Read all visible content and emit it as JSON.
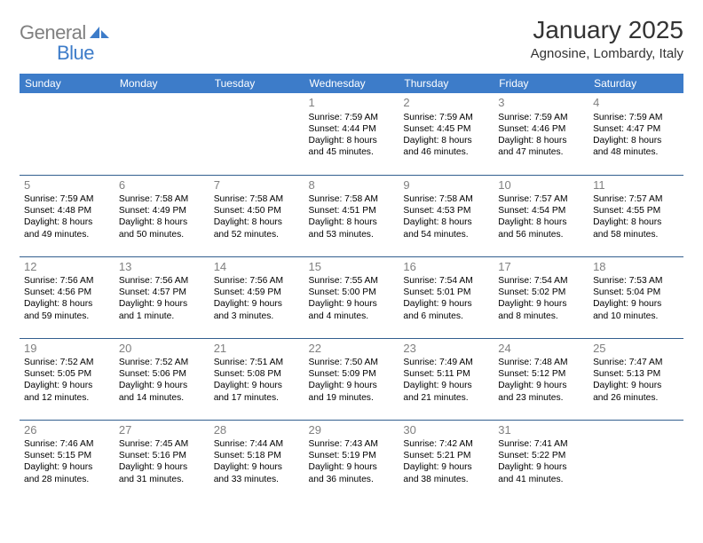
{
  "logo": {
    "prefix": "General",
    "suffix": "Blue",
    "icon_color": "#3d7cc9"
  },
  "header": {
    "title": "January 2025",
    "location": "Agnosine, Lombardy, Italy"
  },
  "colors": {
    "header_bg": "#3d7cc9",
    "header_text": "#ffffff",
    "cell_border": "#335f8f",
    "daynum": "#808080",
    "body_text": "#000000"
  },
  "weekdays": [
    "Sunday",
    "Monday",
    "Tuesday",
    "Wednesday",
    "Thursday",
    "Friday",
    "Saturday"
  ],
  "weeks": [
    [
      null,
      null,
      null,
      {
        "d": "1",
        "sr": "Sunrise: 7:59 AM",
        "ss": "Sunset: 4:44 PM",
        "dl1": "Daylight: 8 hours",
        "dl2": "and 45 minutes."
      },
      {
        "d": "2",
        "sr": "Sunrise: 7:59 AM",
        "ss": "Sunset: 4:45 PM",
        "dl1": "Daylight: 8 hours",
        "dl2": "and 46 minutes."
      },
      {
        "d": "3",
        "sr": "Sunrise: 7:59 AM",
        "ss": "Sunset: 4:46 PM",
        "dl1": "Daylight: 8 hours",
        "dl2": "and 47 minutes."
      },
      {
        "d": "4",
        "sr": "Sunrise: 7:59 AM",
        "ss": "Sunset: 4:47 PM",
        "dl1": "Daylight: 8 hours",
        "dl2": "and 48 minutes."
      }
    ],
    [
      {
        "d": "5",
        "sr": "Sunrise: 7:59 AM",
        "ss": "Sunset: 4:48 PM",
        "dl1": "Daylight: 8 hours",
        "dl2": "and 49 minutes."
      },
      {
        "d": "6",
        "sr": "Sunrise: 7:58 AM",
        "ss": "Sunset: 4:49 PM",
        "dl1": "Daylight: 8 hours",
        "dl2": "and 50 minutes."
      },
      {
        "d": "7",
        "sr": "Sunrise: 7:58 AM",
        "ss": "Sunset: 4:50 PM",
        "dl1": "Daylight: 8 hours",
        "dl2": "and 52 minutes."
      },
      {
        "d": "8",
        "sr": "Sunrise: 7:58 AM",
        "ss": "Sunset: 4:51 PM",
        "dl1": "Daylight: 8 hours",
        "dl2": "and 53 minutes."
      },
      {
        "d": "9",
        "sr": "Sunrise: 7:58 AM",
        "ss": "Sunset: 4:53 PM",
        "dl1": "Daylight: 8 hours",
        "dl2": "and 54 minutes."
      },
      {
        "d": "10",
        "sr": "Sunrise: 7:57 AM",
        "ss": "Sunset: 4:54 PM",
        "dl1": "Daylight: 8 hours",
        "dl2": "and 56 minutes."
      },
      {
        "d": "11",
        "sr": "Sunrise: 7:57 AM",
        "ss": "Sunset: 4:55 PM",
        "dl1": "Daylight: 8 hours",
        "dl2": "and 58 minutes."
      }
    ],
    [
      {
        "d": "12",
        "sr": "Sunrise: 7:56 AM",
        "ss": "Sunset: 4:56 PM",
        "dl1": "Daylight: 8 hours",
        "dl2": "and 59 minutes."
      },
      {
        "d": "13",
        "sr": "Sunrise: 7:56 AM",
        "ss": "Sunset: 4:57 PM",
        "dl1": "Daylight: 9 hours",
        "dl2": "and 1 minute."
      },
      {
        "d": "14",
        "sr": "Sunrise: 7:56 AM",
        "ss": "Sunset: 4:59 PM",
        "dl1": "Daylight: 9 hours",
        "dl2": "and 3 minutes."
      },
      {
        "d": "15",
        "sr": "Sunrise: 7:55 AM",
        "ss": "Sunset: 5:00 PM",
        "dl1": "Daylight: 9 hours",
        "dl2": "and 4 minutes."
      },
      {
        "d": "16",
        "sr": "Sunrise: 7:54 AM",
        "ss": "Sunset: 5:01 PM",
        "dl1": "Daylight: 9 hours",
        "dl2": "and 6 minutes."
      },
      {
        "d": "17",
        "sr": "Sunrise: 7:54 AM",
        "ss": "Sunset: 5:02 PM",
        "dl1": "Daylight: 9 hours",
        "dl2": "and 8 minutes."
      },
      {
        "d": "18",
        "sr": "Sunrise: 7:53 AM",
        "ss": "Sunset: 5:04 PM",
        "dl1": "Daylight: 9 hours",
        "dl2": "and 10 minutes."
      }
    ],
    [
      {
        "d": "19",
        "sr": "Sunrise: 7:52 AM",
        "ss": "Sunset: 5:05 PM",
        "dl1": "Daylight: 9 hours",
        "dl2": "and 12 minutes."
      },
      {
        "d": "20",
        "sr": "Sunrise: 7:52 AM",
        "ss": "Sunset: 5:06 PM",
        "dl1": "Daylight: 9 hours",
        "dl2": "and 14 minutes."
      },
      {
        "d": "21",
        "sr": "Sunrise: 7:51 AM",
        "ss": "Sunset: 5:08 PM",
        "dl1": "Daylight: 9 hours",
        "dl2": "and 17 minutes."
      },
      {
        "d": "22",
        "sr": "Sunrise: 7:50 AM",
        "ss": "Sunset: 5:09 PM",
        "dl1": "Daylight: 9 hours",
        "dl2": "and 19 minutes."
      },
      {
        "d": "23",
        "sr": "Sunrise: 7:49 AM",
        "ss": "Sunset: 5:11 PM",
        "dl1": "Daylight: 9 hours",
        "dl2": "and 21 minutes."
      },
      {
        "d": "24",
        "sr": "Sunrise: 7:48 AM",
        "ss": "Sunset: 5:12 PM",
        "dl1": "Daylight: 9 hours",
        "dl2": "and 23 minutes."
      },
      {
        "d": "25",
        "sr": "Sunrise: 7:47 AM",
        "ss": "Sunset: 5:13 PM",
        "dl1": "Daylight: 9 hours",
        "dl2": "and 26 minutes."
      }
    ],
    [
      {
        "d": "26",
        "sr": "Sunrise: 7:46 AM",
        "ss": "Sunset: 5:15 PM",
        "dl1": "Daylight: 9 hours",
        "dl2": "and 28 minutes."
      },
      {
        "d": "27",
        "sr": "Sunrise: 7:45 AM",
        "ss": "Sunset: 5:16 PM",
        "dl1": "Daylight: 9 hours",
        "dl2": "and 31 minutes."
      },
      {
        "d": "28",
        "sr": "Sunrise: 7:44 AM",
        "ss": "Sunset: 5:18 PM",
        "dl1": "Daylight: 9 hours",
        "dl2": "and 33 minutes."
      },
      {
        "d": "29",
        "sr": "Sunrise: 7:43 AM",
        "ss": "Sunset: 5:19 PM",
        "dl1": "Daylight: 9 hours",
        "dl2": "and 36 minutes."
      },
      {
        "d": "30",
        "sr": "Sunrise: 7:42 AM",
        "ss": "Sunset: 5:21 PM",
        "dl1": "Daylight: 9 hours",
        "dl2": "and 38 minutes."
      },
      {
        "d": "31",
        "sr": "Sunrise: 7:41 AM",
        "ss": "Sunset: 5:22 PM",
        "dl1": "Daylight: 9 hours",
        "dl2": "and 41 minutes."
      },
      null
    ]
  ]
}
